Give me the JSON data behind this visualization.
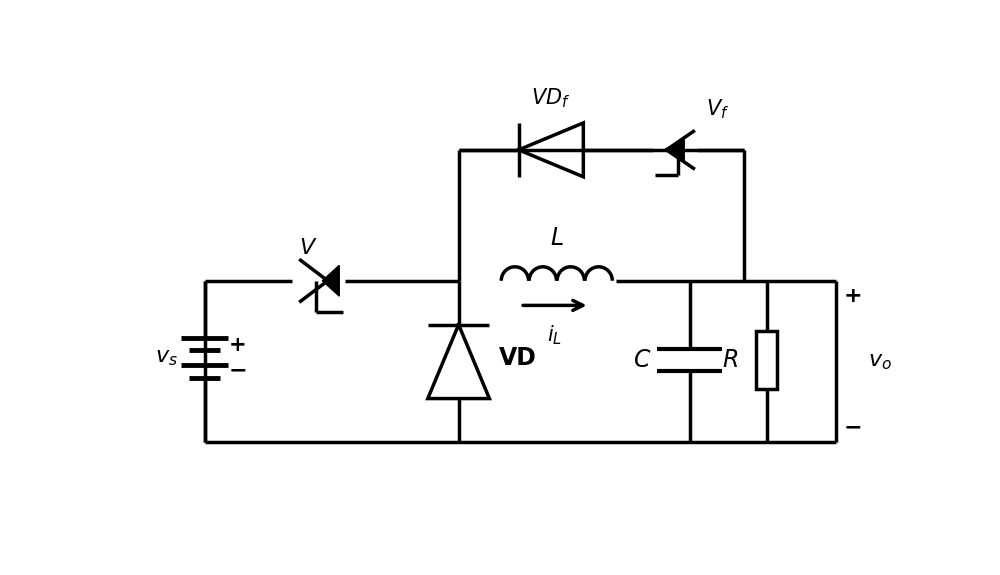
{
  "bg_color": "#ffffff",
  "line_color": "#000000",
  "line_width": 2.5,
  "fig_width": 10.0,
  "fig_height": 5.75,
  "dpi": 100,
  "components": {
    "vs_label": "$v_s$",
    "L_label": "$L$",
    "iL_label": "$i_L$",
    "C_label": "$C$",
    "R_label": "$R$",
    "vo_label": "$v_o$",
    "V_label": "V",
    "VD_label": "VD",
    "VDf_label": "VD$_f$",
    "Vf_label": "V$_f$"
  }
}
